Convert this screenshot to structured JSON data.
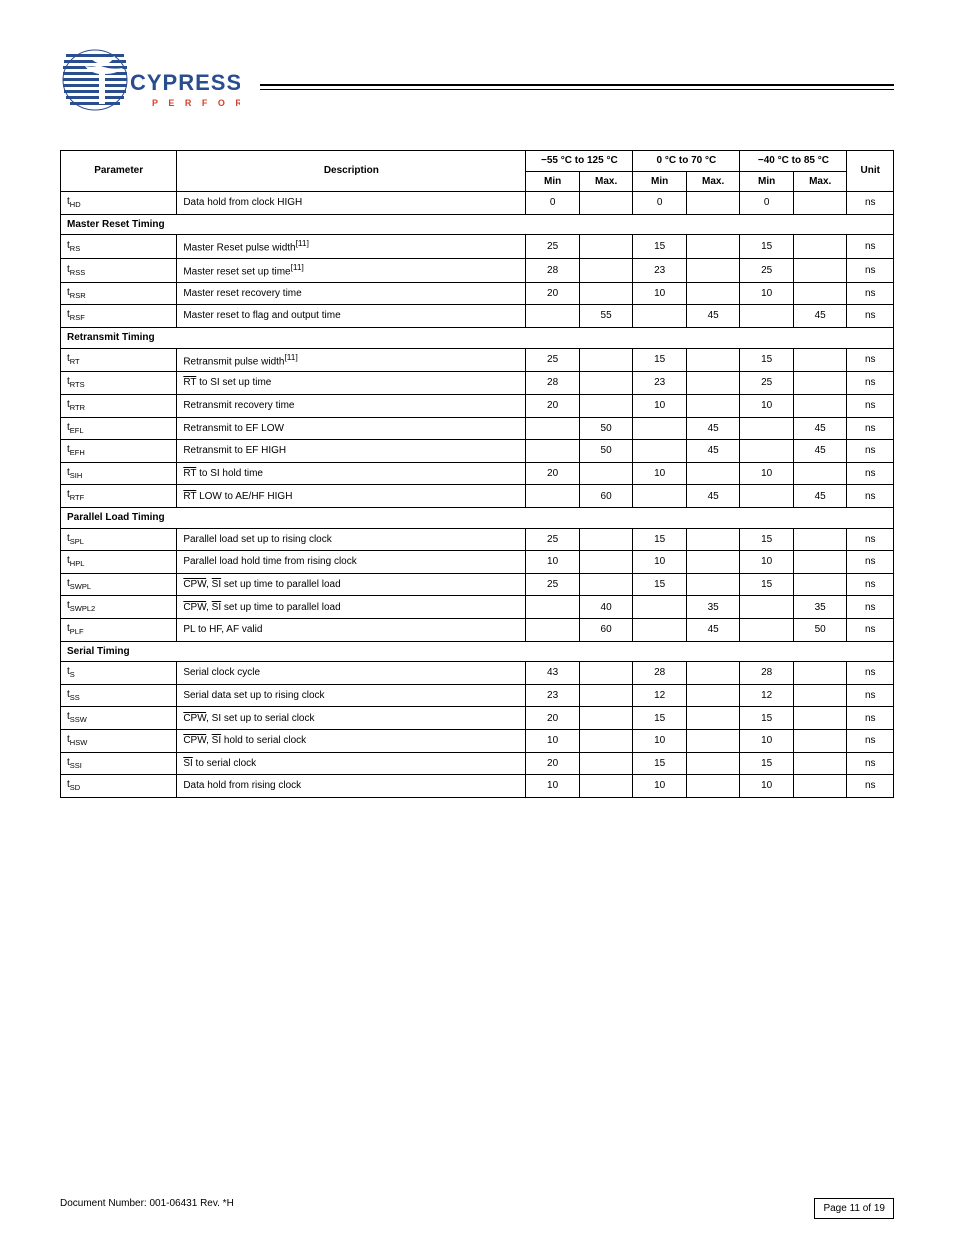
{
  "doc": {
    "footer_left": "Document Number: 001-06431 Rev. *H",
    "footer_right": "Page 11 of 19"
  },
  "logo": {
    "brand_text": "CYPRESS",
    "tagline": "P E R F O R M",
    "brand_color": "#2a4d8f",
    "tagline_color": "#d6402c"
  },
  "table": {
    "columns": {
      "parameter": "Parameter",
      "description": "Description",
      "minus55": "−55 °C to 125 °C",
      "zero70": "0 °C to 70 °C",
      "minus40": "−40 °C to 85 °C",
      "unit": "Unit",
      "min": "Min",
      "max": "Max."
    },
    "rows": [
      {
        "type": "data",
        "param": "t<sub>HD</sub>",
        "desc": "Data hold from clock HIGH",
        "cells": [
          "0",
          "",
          "0",
          "",
          "0",
          ""
        ],
        "unit": "ns"
      },
      {
        "type": "section",
        "label": "Master Reset Timing"
      },
      {
        "type": "data",
        "param": "t<sub>RS</sub>",
        "desc": "Master Reset pulse width<sup>[11]</sup>",
        "cells": [
          "25",
          "",
          "15",
          "",
          "15",
          ""
        ],
        "unit": "ns"
      },
      {
        "type": "data",
        "param": "t<sub>RSS</sub>",
        "desc": "Master reset set up time<sup>[11]</sup>",
        "cells": [
          "28",
          "",
          "23",
          "",
          "25",
          ""
        ],
        "unit": "ns"
      },
      {
        "type": "data",
        "param": "t<sub>RSR</sub>",
        "desc": "Master reset recovery time",
        "cells": [
          "20",
          "",
          "10",
          "",
          "10",
          ""
        ],
        "unit": "ns"
      },
      {
        "type": "data",
        "param": "t<sub>RSF</sub>",
        "desc": "Master reset to flag and output time",
        "cells": [
          "",
          "55",
          "",
          "45",
          "",
          "45"
        ],
        "unit": "ns"
      },
      {
        "type": "section",
        "label": "Retransmit Timing"
      },
      {
        "type": "data",
        "param": "t<sub>RT</sub>",
        "desc": "Retransmit pulse width<sup>[11]</sup>",
        "cells": [
          "25",
          "",
          "15",
          "",
          "15",
          ""
        ],
        "unit": "ns"
      },
      {
        "type": "data",
        "param": "t<sub>RTS</sub>",
        "desc": "<span class=\"overline\">RT</span> to SI set up time",
        "cells": [
          "28",
          "",
          "23",
          "",
          "25",
          ""
        ],
        "unit": "ns"
      },
      {
        "type": "data",
        "param": "t<sub>RTR</sub>",
        "desc": "Retransmit recovery time",
        "cells": [
          "20",
          "",
          "10",
          "",
          "10",
          ""
        ],
        "unit": "ns"
      },
      {
        "type": "data",
        "param": "t<sub>EFL</sub>",
        "desc": "Retransmit to EF LOW",
        "cells": [
          "",
          "50",
          "",
          "45",
          "",
          "45"
        ],
        "unit": "ns"
      },
      {
        "type": "data",
        "param": "t<sub>EFH</sub>",
        "desc": "Retransmit to EF HIGH",
        "cells": [
          "",
          "50",
          "",
          "45",
          "",
          "45"
        ],
        "unit": "ns"
      },
      {
        "type": "data",
        "param": "t<sub>SIH</sub>",
        "desc": "<span class=\"overline\">RT</span> to SI hold time",
        "cells": [
          "20",
          "",
          "10",
          "",
          "10",
          ""
        ],
        "unit": "ns"
      },
      {
        "type": "data",
        "param": "t<sub>RTF</sub>",
        "desc": "<span class=\"overline\">RT</span> LOW to AE/HF HIGH",
        "cells": [
          "",
          "60",
          "",
          "45",
          "",
          "45"
        ],
        "unit": "ns"
      },
      {
        "type": "section",
        "label": "Parallel Load Timing"
      },
      {
        "type": "data",
        "param": "t<sub>SPL</sub>",
        "desc": "Parallel load set up to rising clock",
        "cells": [
          "25",
          "",
          "15",
          "",
          "15",
          ""
        ],
        "unit": "ns"
      },
      {
        "type": "data",
        "param": "t<sub>HPL</sub>",
        "desc": "Parallel load hold time from rising clock",
        "cells": [
          "10",
          "",
          "10",
          "",
          "10",
          ""
        ],
        "unit": "ns"
      },
      {
        "type": "data",
        "param": "t<sub>SWPL</sub>",
        "desc": "<span class=\"overline\">CPW</span>, <span class=\"overline\">SI</span> set up time to parallel load",
        "cells": [
          "25",
          "",
          "15",
          "",
          "15",
          ""
        ],
        "unit": "ns"
      },
      {
        "type": "data",
        "param": "t<sub>SWPL2</sub>",
        "desc": "<span class=\"overline\">CPW</span>, <span class=\"overline\">SI</span> set up time to parallel load",
        "cells": [
          "",
          "40",
          "",
          "35",
          "",
          "35"
        ],
        "unit": "ns"
      },
      {
        "type": "data",
        "param": "t<sub>PLF</sub>",
        "desc": "PL to HF, AF valid",
        "cells": [
          "",
          "60",
          "",
          "45",
          "",
          "50"
        ],
        "unit": "ns"
      },
      {
        "type": "section",
        "label": "Serial Timing"
      },
      {
        "type": "data",
        "param": "t<sub>S</sub>",
        "desc": "Serial clock cycle",
        "cells": [
          "43",
          "",
          "28",
          "",
          "28",
          ""
        ],
        "unit": "ns"
      },
      {
        "type": "data",
        "param": "t<sub>SS</sub>",
        "desc": "Serial data set up to rising clock",
        "cells": [
          "23",
          "",
          "12",
          "",
          "12",
          ""
        ],
        "unit": "ns"
      },
      {
        "type": "data",
        "param": "t<sub>SSW</sub>",
        "desc": "<span class=\"overline\">CPW</span>, SI set up to serial clock",
        "cells": [
          "20",
          "",
          "15",
          "",
          "15",
          ""
        ],
        "unit": "ns"
      },
      {
        "type": "data",
        "param": "t<sub>HSW</sub>",
        "desc": "<span class=\"overline\">CPW</span>, <span class=\"overline\">SI</span> hold to serial clock",
        "cells": [
          "10",
          "",
          "10",
          "",
          "10",
          ""
        ],
        "unit": "ns"
      },
      {
        "type": "data",
        "param": "t<sub>SSI</sub>",
        "desc": "<span class=\"overline\">SI</span> to serial clock",
        "cells": [
          "20",
          "",
          "15",
          "",
          "15",
          ""
        ],
        "unit": "ns"
      },
      {
        "type": "data",
        "param": "t<sub>SD</sub>",
        "desc": "Data hold from rising clock",
        "cells": [
          "10",
          "",
          "10",
          "",
          "10",
          ""
        ],
        "unit": "ns"
      }
    ]
  }
}
